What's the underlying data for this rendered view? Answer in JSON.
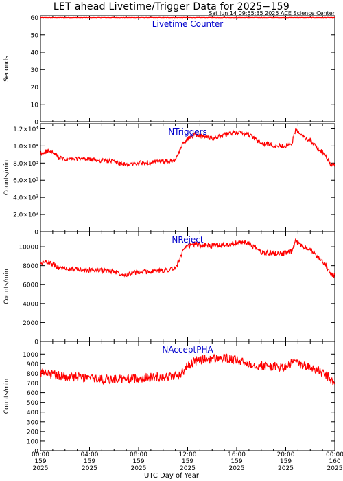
{
  "title": "LET ahead Livetime/Trigger Data for 2025−159",
  "subtitle": "Sat Jun 14 09:55:35 2025 ACE Science Center",
  "x_axis_label": "UTC Day of Year",
  "colors": {
    "series": "#ff0000",
    "panel_label": "#0000cc",
    "axes": "#000000"
  },
  "chart_data": [
    {
      "type": "line",
      "label": "Livetime Counter",
      "ylabel": "Seconds",
      "ylim": [
        0,
        61
      ],
      "yticks": [
        0,
        10,
        20,
        30,
        40,
        50,
        60
      ],
      "ytick_labels": [
        "0",
        "10",
        "20",
        "30",
        "40",
        "50",
        "60"
      ],
      "noise": 0.1,
      "x_hours": [
        0,
        24
      ],
      "y": [
        60,
        60
      ]
    },
    {
      "type": "line",
      "label": "NTriggers",
      "ylabel": "Counts/min",
      "ylim": [
        0,
        12600
      ],
      "yticks": [
        0,
        2000,
        4000,
        6000,
        8000,
        10000,
        12000
      ],
      "ytick_labels": [
        "0",
        "2.0×10³",
        "4.0×10³",
        "6.0×10³",
        "8.0×10³",
        "1.0×10⁴",
        "1.2×10⁴"
      ],
      "noise": 260,
      "x_hours": [
        0,
        0.5,
        1,
        1.5,
        2,
        3,
        4,
        5,
        6,
        6.5,
        7,
        8,
        9,
        10,
        10.5,
        11,
        11.3,
        11.7,
        12,
        12.5,
        13,
        14,
        15,
        16,
        16.5,
        17,
        17.5,
        18,
        19,
        20,
        20.5,
        20.8,
        21,
        21.5,
        22,
        22.5,
        23,
        23.3,
        23.6,
        24
      ],
      "y": [
        9000,
        9400,
        9200,
        8600,
        8400,
        8500,
        8400,
        8300,
        8200,
        7900,
        7800,
        8000,
        8100,
        8200,
        8200,
        8300,
        9200,
        10500,
        10800,
        11300,
        11200,
        10900,
        11300,
        11600,
        11500,
        11300,
        10800,
        10300,
        10100,
        10000,
        10300,
        11900,
        11600,
        11000,
        10700,
        9800,
        9300,
        8800,
        7900,
        7700
      ]
    },
    {
      "type": "line",
      "label": "NReject",
      "ylabel": "Counts/min",
      "ylim": [
        0,
        11600
      ],
      "yticks": [
        0,
        2000,
        4000,
        6000,
        8000,
        10000
      ],
      "ytick_labels": [
        "0",
        "2000",
        "4000",
        "6000",
        "8000",
        "10000"
      ],
      "noise": 260,
      "x_hours": [
        0,
        0.5,
        1,
        1.5,
        2,
        3,
        4,
        5,
        6,
        6.5,
        7,
        8,
        9,
        10,
        10.5,
        11,
        11.3,
        11.7,
        12,
        12.5,
        13,
        14,
        15,
        16,
        16.5,
        17,
        17.5,
        18,
        19,
        20,
        20.5,
        20.8,
        21,
        21.5,
        22,
        22.5,
        23,
        23.3,
        23.6,
        24
      ],
      "y": [
        8200,
        8500,
        8100,
        7800,
        7700,
        7600,
        7500,
        7500,
        7400,
        7200,
        7100,
        7300,
        7400,
        7500,
        7600,
        7700,
        8600,
        9700,
        10000,
        10300,
        10200,
        10100,
        10200,
        10400,
        10500,
        10300,
        9900,
        9400,
        9300,
        9300,
        9500,
        10600,
        10400,
        10000,
        9800,
        9000,
        8500,
        8000,
        7200,
        6900
      ]
    },
    {
      "type": "line",
      "label": "NAcceptPHA",
      "ylabel": "Counts/min",
      "ylim": [
        0,
        1130
      ],
      "yticks": [
        0,
        100,
        200,
        300,
        400,
        500,
        600,
        700,
        800,
        900,
        1000
      ],
      "ytick_labels": [
        "0",
        "100",
        "200",
        "300",
        "400",
        "500",
        "600",
        "700",
        "800",
        "900",
        "1000"
      ],
      "noise": 48,
      "x_hours": [
        0,
        1,
        2,
        3,
        4,
        5,
        6,
        7,
        8,
        9,
        10,
        11,
        11.5,
        12,
        12.5,
        13,
        14,
        15,
        16,
        17,
        18,
        19,
        20,
        20.8,
        21,
        21.5,
        22,
        22.5,
        23,
        23.5,
        24
      ],
      "y": [
        800,
        790,
        770,
        760,
        750,
        740,
        740,
        745,
        750,
        760,
        765,
        770,
        800,
        880,
        920,
        940,
        950,
        960,
        930,
        900,
        880,
        870,
        860,
        940,
        900,
        880,
        860,
        840,
        800,
        760,
        680
      ]
    }
  ],
  "x_ticks": [
    {
      "hours": 0,
      "time": "00:00",
      "doy": "159",
      "year": "2025"
    },
    {
      "hours": 4,
      "time": "04:00",
      "doy": "159",
      "year": "2025"
    },
    {
      "hours": 8,
      "time": "08:00",
      "doy": "159",
      "year": "2025"
    },
    {
      "hours": 12,
      "time": "12:00",
      "doy": "159",
      "year": "2025"
    },
    {
      "hours": 16,
      "time": "16:00",
      "doy": "159",
      "year": "2025"
    },
    {
      "hours": 20,
      "time": "20:00",
      "doy": "159",
      "year": "2025"
    },
    {
      "hours": 24,
      "time": "00:00",
      "doy": "160",
      "year": "2025"
    }
  ]
}
